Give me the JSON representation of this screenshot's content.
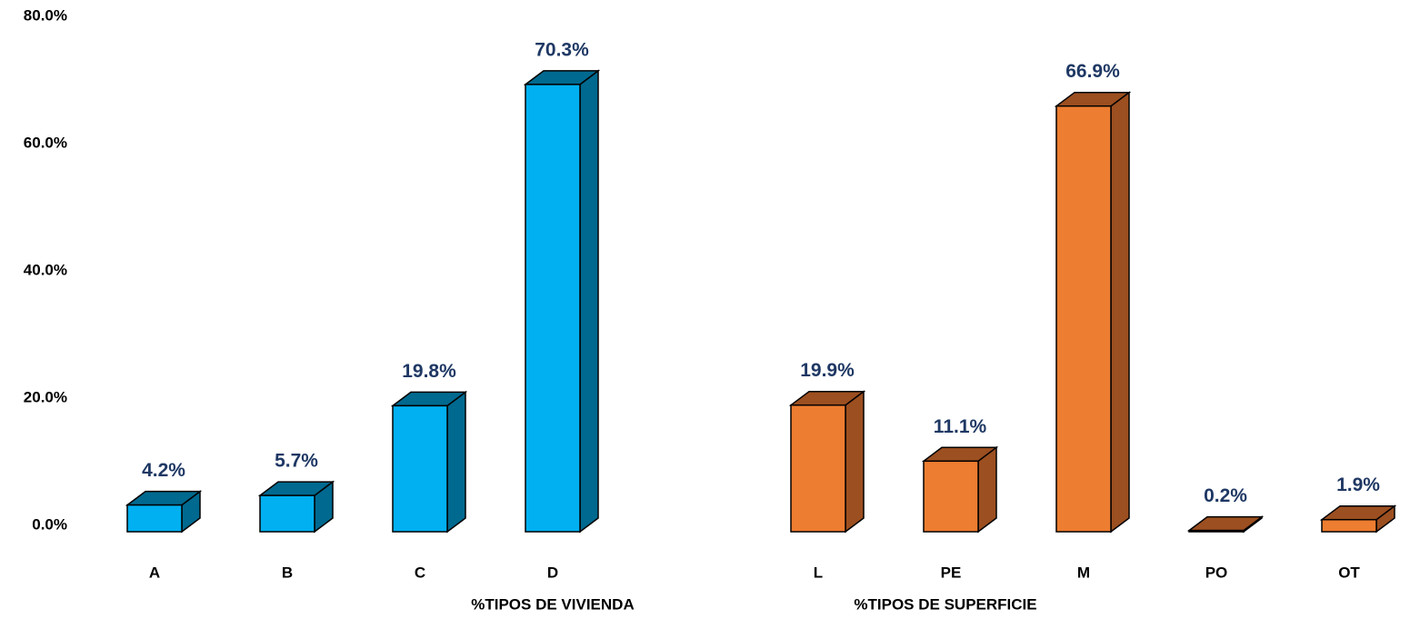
{
  "chart_data": {
    "type": "bar3d",
    "categories": [
      "A",
      "B",
      "C",
      "D",
      null,
      "L",
      "PE",
      "M",
      "PO",
      "OT"
    ],
    "series": [
      {
        "name": "%TIPOS DE VIVIENDA",
        "color": "#00b0f0",
        "side_color": "#00698f",
        "values": [
          4.2,
          5.7,
          19.8,
          70.3,
          null,
          null,
          null,
          null,
          null,
          null
        ],
        "value_labels": [
          "4.2%",
          "5.7%",
          "19.8%",
          "70.3%",
          null,
          null,
          null,
          null,
          null,
          null
        ]
      },
      {
        "name": "%TIPOS DE SUPERFICIE",
        "color": "#ed7d31",
        "side_color": "#9c4f20",
        "values": [
          null,
          null,
          null,
          null,
          null,
          19.9,
          11.1,
          66.9,
          0.2,
          1.9
        ],
        "value_labels": [
          null,
          null,
          null,
          null,
          null,
          "19.9%",
          "11.1%",
          "66.9%",
          "0.2%",
          "1.9%"
        ]
      }
    ],
    "ylim": [
      0,
      80
    ],
    "yticks": [
      {
        "value": 0,
        "label": "0.0%"
      },
      {
        "value": 20,
        "label": "20.0%"
      },
      {
        "value": 40,
        "label": "40.0%"
      },
      {
        "value": 60,
        "label": "60.0%"
      },
      {
        "value": 80,
        "label": "80.0%"
      }
    ],
    "grid": false
  }
}
